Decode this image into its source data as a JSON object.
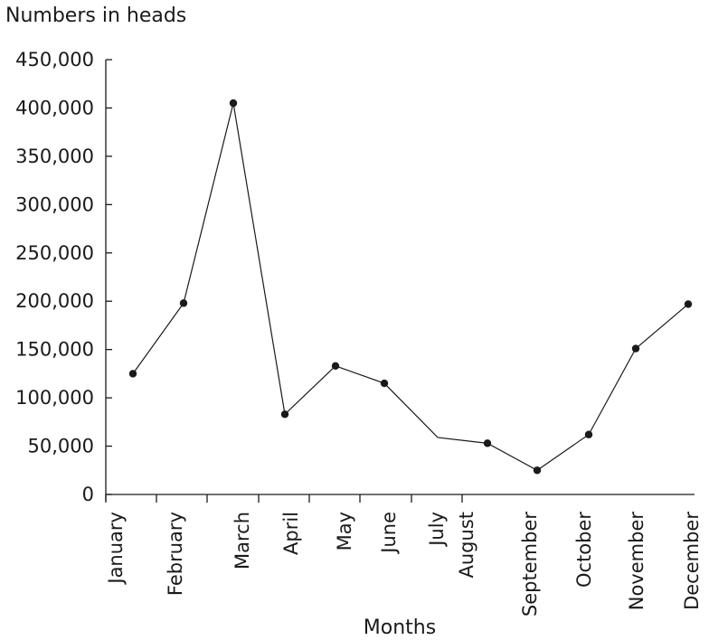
{
  "chart_data": {
    "type": "line",
    "title": "",
    "ylabel": "Numbers in heads",
    "xlabel": "Months",
    "categories": [
      "January",
      "February",
      "March",
      "April",
      "May",
      "June",
      "July",
      "August",
      "September",
      "October",
      "November",
      "December"
    ],
    "series": [
      {
        "values": [
          125000,
          198000,
          405000,
          83000,
          133000,
          115000,
          59000,
          53000,
          25000,
          62000,
          151000,
          197000
        ],
        "markers": [
          true,
          true,
          true,
          true,
          true,
          true,
          false,
          true,
          true,
          true,
          true,
          true
        ]
      }
    ],
    "ylim": [
      0,
      450000
    ],
    "yticks": [
      0,
      50000,
      100000,
      150000,
      200000,
      250000,
      300000,
      350000,
      400000,
      450000
    ],
    "ytick_labels": [
      "0",
      "50,000",
      "100,000",
      "150,000",
      "200,000",
      "250,000",
      "300,000",
      "350,000",
      "400,000",
      "450,000"
    ],
    "grid": false,
    "legend": "none"
  }
}
